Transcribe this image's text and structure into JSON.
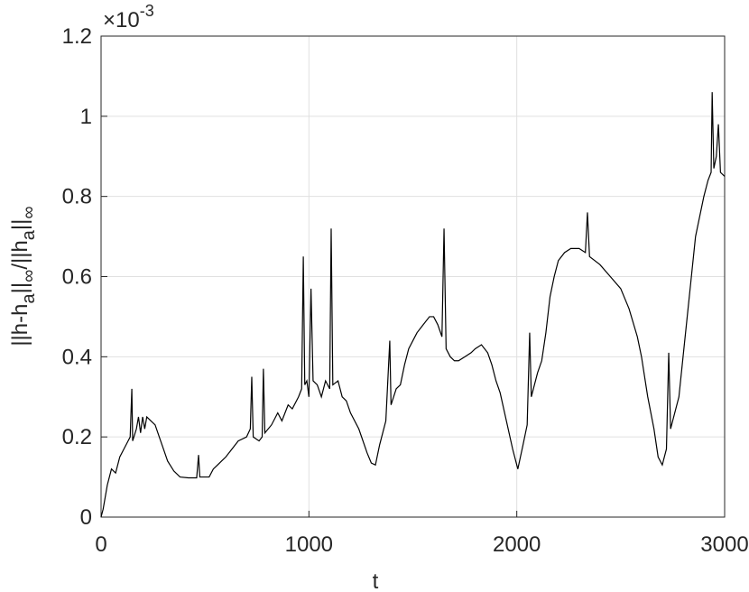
{
  "chart_data": {
    "type": "line",
    "xlabel": "t",
    "ylabel_parts": [
      {
        "text": "||h-h"
      },
      {
        "text": "a",
        "sub": true
      },
      {
        "text": "||"
      },
      {
        "text": "∞",
        "sub": true
      },
      {
        "text": "/||h"
      },
      {
        "text": "a",
        "sub": true
      },
      {
        "text": "||"
      },
      {
        "text": "∞",
        "sub": true
      }
    ],
    "y_multiplier_base": "×10",
    "y_multiplier_exponent": "-3",
    "xlim": [
      0,
      3000
    ],
    "xticks": [
      0,
      1000,
      2000,
      3000
    ],
    "ylim": [
      0,
      1.2
    ],
    "yticks": [
      0,
      0.2,
      0.4,
      0.6,
      0.8,
      1,
      1.2
    ],
    "grid": true,
    "series": [
      {
        "color": "#000000",
        "x": [
          0,
          10,
          30,
          50,
          70,
          90,
          110,
          130,
          140,
          148,
          152,
          170,
          180,
          190,
          200,
          210,
          220,
          240,
          260,
          280,
          300,
          320,
          350,
          380,
          420,
          460,
          469,
          475,
          520,
          540,
          560,
          580,
          600,
          630,
          660,
          700,
          718,
          725,
          732,
          760,
          775,
          781,
          788,
          820,
          850,
          870,
          900,
          920,
          950,
          965,
          973,
          980,
          990,
          1000,
          1010,
          1020,
          1040,
          1060,
          1080,
          1100,
          1107,
          1115,
          1140,
          1160,
          1180,
          1200,
          1240,
          1280,
          1300,
          1320,
          1340,
          1370,
          1389,
          1395,
          1420,
          1440,
          1460,
          1480,
          1500,
          1520,
          1550,
          1580,
          1600,
          1620,
          1640,
          1650,
          1660,
          1680,
          1700,
          1720,
          1750,
          1780,
          1800,
          1830,
          1860,
          1880,
          1900,
          1920,
          1950,
          1980,
          2005,
          2030,
          2050,
          2062,
          2070,
          2100,
          2120,
          2140,
          2160,
          2180,
          2200,
          2230,
          2260,
          2300,
          2330,
          2340,
          2350,
          2400,
          2450,
          2500,
          2540,
          2580,
          2600,
          2630,
          2660,
          2680,
          2700,
          2720,
          2731,
          2740,
          2780,
          2800,
          2820,
          2840,
          2860,
          2880,
          2900,
          2920,
          2935,
          2940,
          2948,
          2960,
          2970,
          2980,
          3000
        ],
        "values": [
          0,
          0.02,
          0.08,
          0.12,
          0.11,
          0.15,
          0.17,
          0.19,
          0.2,
          0.32,
          0.19,
          0.22,
          0.25,
          0.21,
          0.25,
          0.22,
          0.25,
          0.24,
          0.23,
          0.2,
          0.17,
          0.14,
          0.115,
          0.1,
          0.098,
          0.098,
          0.155,
          0.1,
          0.1,
          0.12,
          0.13,
          0.14,
          0.15,
          0.17,
          0.19,
          0.2,
          0.22,
          0.35,
          0.2,
          0.19,
          0.2,
          0.37,
          0.21,
          0.23,
          0.26,
          0.24,
          0.28,
          0.27,
          0.3,
          0.32,
          0.65,
          0.33,
          0.34,
          0.3,
          0.57,
          0.34,
          0.33,
          0.3,
          0.34,
          0.32,
          0.72,
          0.33,
          0.34,
          0.3,
          0.29,
          0.26,
          0.22,
          0.16,
          0.135,
          0.13,
          0.18,
          0.24,
          0.44,
          0.28,
          0.32,
          0.33,
          0.38,
          0.42,
          0.44,
          0.46,
          0.48,
          0.5,
          0.5,
          0.48,
          0.45,
          0.72,
          0.42,
          0.4,
          0.39,
          0.39,
          0.4,
          0.41,
          0.42,
          0.43,
          0.41,
          0.38,
          0.34,
          0.31,
          0.24,
          0.17,
          0.12,
          0.18,
          0.23,
          0.46,
          0.3,
          0.36,
          0.39,
          0.46,
          0.55,
          0.6,
          0.64,
          0.66,
          0.67,
          0.67,
          0.66,
          0.76,
          0.65,
          0.63,
          0.6,
          0.57,
          0.52,
          0.45,
          0.4,
          0.3,
          0.22,
          0.15,
          0.13,
          0.17,
          0.41,
          0.22,
          0.3,
          0.4,
          0.5,
          0.6,
          0.7,
          0.75,
          0.8,
          0.84,
          0.86,
          1.06,
          0.87,
          0.9,
          0.98,
          0.86,
          0.85
        ]
      }
    ]
  }
}
